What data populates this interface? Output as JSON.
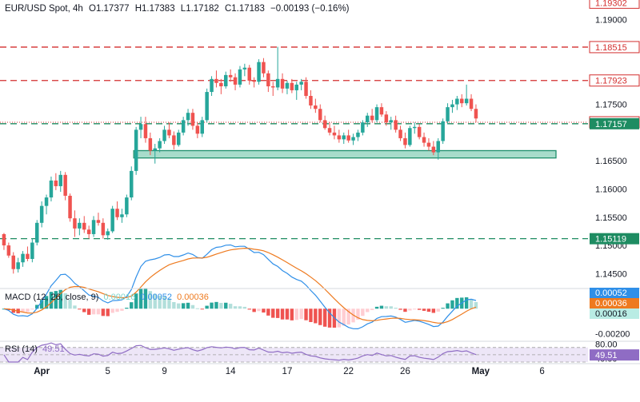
{
  "header": {
    "symbol": "EUR/USD Spot, 4h",
    "open": "O1.17377",
    "high": "H1.17383",
    "low": "L1.17182",
    "close": "C1.17183",
    "change": "−0.00193 (−0.16%)"
  },
  "colors": {
    "up": "#26a69a",
    "down": "#ef5350",
    "red_line": "#d32f2f",
    "green_line": "#1e8c62",
    "zone_fill": "#a8dccb",
    "zone_border": "#1f8f6c",
    "macd_line": "#2f8fe8",
    "signal_line": "#ee7a1f",
    "rsi_line": "#8f6cc4",
    "rsi_band": "#ede6f7"
  },
  "chart_data": {
    "type": "candlestick",
    "title": "EUR/USD Spot, 4h",
    "price_axis": {
      "ylim": [
        1.1425,
        1.1935
      ],
      "ticks": [
        "1.19000",
        "1.17500",
        "1.16500",
        "1.16000",
        "1.15500",
        "1.15000",
        "1.14500"
      ]
    },
    "x_axis": {
      "ticks": [
        "Apr",
        "5",
        "9",
        "14",
        "17",
        "22",
        "26",
        "May",
        "6"
      ]
    },
    "price_labels": [
      {
        "text": "1.19302",
        "value": 1.19302,
        "style": "red"
      },
      {
        "text": "1.18515",
        "value": 1.18515,
        "style": "red"
      },
      {
        "text": "1.17923",
        "value": 1.17923,
        "style": "red"
      },
      {
        "text": "1.17183",
        "value": 1.17183,
        "style": "red"
      },
      {
        "text": "1.17157",
        "value": 1.17157,
        "style": "green"
      },
      {
        "text": "1.15119",
        "value": 1.15119,
        "style": "green"
      }
    ],
    "horizontal_lines": [
      {
        "value": 1.18515,
        "style": "red-dashed"
      },
      {
        "value": 1.17923,
        "style": "red-dashed"
      },
      {
        "value": 1.17157,
        "style": "green-dashed"
      },
      {
        "value": 1.17183,
        "style": "red-dotted"
      },
      {
        "value": 1.15119,
        "style": "green-dashed"
      }
    ],
    "support_zone": {
      "low": 1.1655,
      "high": 1.1668,
      "from_bar": 28,
      "to_bar": 137
    },
    "candles_ohlc": [
      [
        1.152,
        1.1522,
        1.1492,
        1.15
      ],
      [
        1.15,
        1.1505,
        1.1478,
        1.1482
      ],
      [
        1.1482,
        1.1488,
        1.145,
        1.1458
      ],
      [
        1.1458,
        1.1478,
        1.1452,
        1.147
      ],
      [
        1.147,
        1.149,
        1.1462,
        1.1485
      ],
      [
        1.1485,
        1.1498,
        1.1472,
        1.1476
      ],
      [
        1.1476,
        1.1512,
        1.147,
        1.1505
      ],
      [
        1.1505,
        1.1545,
        1.15,
        1.154
      ],
      [
        1.154,
        1.1578,
        1.1532,
        1.157
      ],
      [
        1.157,
        1.159,
        1.1555,
        1.1585
      ],
      [
        1.1585,
        1.1622,
        1.1578,
        1.1615
      ],
      [
        1.1615,
        1.1628,
        1.1598,
        1.1605
      ],
      [
        1.1605,
        1.1632,
        1.1595,
        1.1625
      ],
      [
        1.1625,
        1.163,
        1.158,
        1.1588
      ],
      [
        1.1588,
        1.1592,
        1.1542,
        1.1548
      ],
      [
        1.1548,
        1.1562,
        1.1515,
        1.153
      ],
      [
        1.153,
        1.1548,
        1.1518,
        1.154
      ],
      [
        1.154,
        1.1552,
        1.1522,
        1.1528
      ],
      [
        1.1528,
        1.1535,
        1.1512,
        1.152
      ],
      [
        1.152,
        1.1552,
        1.1515,
        1.1545
      ],
      [
        1.1545,
        1.1558,
        1.1535,
        1.154
      ],
      [
        1.154,
        1.1548,
        1.1512,
        1.1518
      ],
      [
        1.1518,
        1.153,
        1.151,
        1.1525
      ],
      [
        1.1525,
        1.157,
        1.1522,
        1.1565
      ],
      [
        1.1565,
        1.1578,
        1.1545,
        1.155
      ],
      [
        1.155,
        1.1565,
        1.154,
        1.1555
      ],
      [
        1.1555,
        1.159,
        1.155,
        1.1585
      ],
      [
        1.1585,
        1.164,
        1.158,
        1.1632
      ],
      [
        1.1632,
        1.171,
        1.1625,
        1.1705
      ],
      [
        1.1705,
        1.1728,
        1.169,
        1.1715
      ],
      [
        1.1715,
        1.1728,
        1.1682,
        1.169
      ],
      [
        1.169,
        1.17,
        1.166,
        1.1668
      ],
      [
        1.1668,
        1.168,
        1.1645,
        1.1672
      ],
      [
        1.1672,
        1.169,
        1.1665,
        1.1685
      ],
      [
        1.1685,
        1.1712,
        1.168,
        1.1705
      ],
      [
        1.1705,
        1.1718,
        1.169,
        1.1695
      ],
      [
        1.1695,
        1.1702,
        1.167,
        1.1678
      ],
      [
        1.1678,
        1.1705,
        1.1675,
        1.17
      ],
      [
        1.17,
        1.1728,
        1.1695,
        1.1722
      ],
      [
        1.1722,
        1.1742,
        1.1712,
        1.1735
      ],
      [
        1.1735,
        1.1742,
        1.1705,
        1.1712
      ],
      [
        1.1712,
        1.1718,
        1.169,
        1.1698
      ],
      [
        1.1698,
        1.1728,
        1.1692,
        1.1722
      ],
      [
        1.1722,
        1.1778,
        1.1718,
        1.1772
      ],
      [
        1.1772,
        1.18,
        1.1765,
        1.1795
      ],
      [
        1.1795,
        1.181,
        1.178,
        1.1788
      ],
      [
        1.1788,
        1.1795,
        1.1768,
        1.1782
      ],
      [
        1.1782,
        1.1808,
        1.1778,
        1.1802
      ],
      [
        1.1802,
        1.1812,
        1.179,
        1.1798
      ],
      [
        1.1798,
        1.1805,
        1.1775,
        1.1785
      ],
      [
        1.1785,
        1.1818,
        1.178,
        1.1812
      ],
      [
        1.1812,
        1.1822,
        1.18,
        1.1815
      ],
      [
        1.1815,
        1.182,
        1.1785,
        1.1792
      ],
      [
        1.1792,
        1.1798,
        1.178,
        1.179
      ],
      [
        1.179,
        1.183,
        1.1785,
        1.1825
      ],
      [
        1.1825,
        1.1832,
        1.1798,
        1.1805
      ],
      [
        1.1805,
        1.181,
        1.1772,
        1.1782
      ],
      [
        1.1782,
        1.179,
        1.1765,
        1.178
      ],
      [
        1.178,
        1.1852,
        1.1775,
        1.1795
      ],
      [
        1.1795,
        1.1805,
        1.177,
        1.1778
      ],
      [
        1.1778,
        1.1792,
        1.1768,
        1.1788
      ],
      [
        1.1788,
        1.1795,
        1.177,
        1.1775
      ],
      [
        1.1775,
        1.179,
        1.1758,
        1.1785
      ],
      [
        1.1785,
        1.1795,
        1.1775,
        1.179
      ],
      [
        1.179,
        1.1798,
        1.176,
        1.1765
      ],
      [
        1.1765,
        1.1775,
        1.1742,
        1.1748
      ],
      [
        1.1748,
        1.176,
        1.1735,
        1.1742
      ],
      [
        1.1742,
        1.175,
        1.1718,
        1.1722
      ],
      [
        1.1722,
        1.173,
        1.1705,
        1.1708
      ],
      [
        1.1708,
        1.1718,
        1.1695,
        1.17
      ],
      [
        1.17,
        1.1712,
        1.1688,
        1.1695
      ],
      [
        1.1695,
        1.1705,
        1.1682,
        1.1688
      ],
      [
        1.1688,
        1.17,
        1.168,
        1.1695
      ],
      [
        1.1695,
        1.1705,
        1.1682,
        1.1686
      ],
      [
        1.1686,
        1.1698,
        1.1678,
        1.1692
      ],
      [
        1.1692,
        1.1705,
        1.1685,
        1.17
      ],
      [
        1.17,
        1.1722,
        1.1695,
        1.1718
      ],
      [
        1.1718,
        1.1735,
        1.171,
        1.173
      ],
      [
        1.173,
        1.1742,
        1.1718,
        1.1722
      ],
      [
        1.1722,
        1.175,
        1.1718,
        1.1745
      ],
      [
        1.1745,
        1.1752,
        1.1728,
        1.1732
      ],
      [
        1.1732,
        1.1738,
        1.1712,
        1.1718
      ],
      [
        1.1718,
        1.1728,
        1.1705,
        1.1722
      ],
      [
        1.1722,
        1.173,
        1.17,
        1.1705
      ],
      [
        1.1705,
        1.1712,
        1.1685,
        1.169
      ],
      [
        1.169,
        1.17,
        1.1672,
        1.1678
      ],
      [
        1.1678,
        1.1712,
        1.1675,
        1.1708
      ],
      [
        1.1708,
        1.1718,
        1.1698,
        1.171
      ],
      [
        1.171,
        1.1715,
        1.1688,
        1.1692
      ],
      [
        1.1692,
        1.17,
        1.1675,
        1.1682
      ],
      [
        1.1682,
        1.169,
        1.1668,
        1.1675
      ],
      [
        1.1675,
        1.1685,
        1.166,
        1.1665
      ],
      [
        1.1665,
        1.169,
        1.1652,
        1.1685
      ],
      [
        1.1685,
        1.1725,
        1.168,
        1.172
      ],
      [
        1.172,
        1.1752,
        1.1715,
        1.1745
      ],
      [
        1.1745,
        1.1758,
        1.1735,
        1.175
      ],
      [
        1.175,
        1.1765,
        1.174,
        1.176
      ],
      [
        1.176,
        1.1768,
        1.1745,
        1.1752
      ],
      [
        1.1752,
        1.1785,
        1.1748,
        1.176
      ],
      [
        1.176,
        1.1768,
        1.1738,
        1.1742
      ],
      [
        1.1742,
        1.175,
        1.1718,
        1.1725
      ]
    ],
    "macd": {
      "title": "MACD (12, 26, close, 9)",
      "values": [
        "0.00016",
        "0.00052",
        "0.00036"
      ],
      "ylim": [
        -0.0025,
        0.0015
      ],
      "ticks": [
        "-0.00200"
      ],
      "price_labels": [
        "0.00052",
        "0.00036",
        "0.00016"
      ]
    },
    "rsi": {
      "title": "RSI (14)",
      "value": "49.51",
      "ylim": [
        30,
        85
      ],
      "ticks": [
        "80.00",
        "40.00"
      ],
      "band": [
        30,
        70
      ],
      "price_label": "49.51"
    }
  }
}
